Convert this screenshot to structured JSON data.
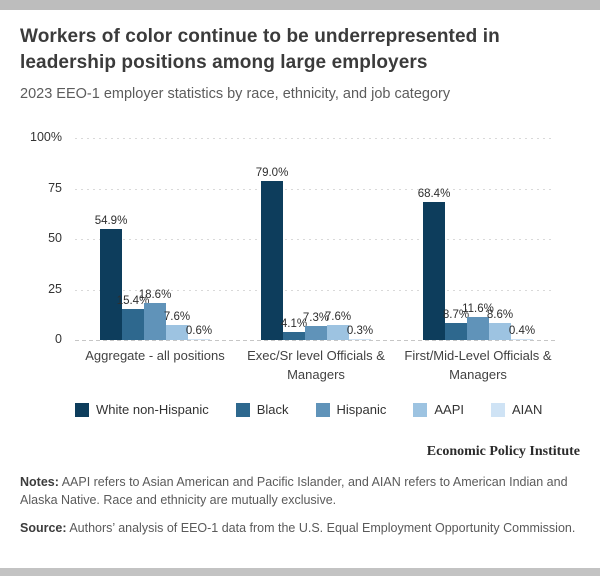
{
  "page": {
    "background": "#ffffff",
    "chrome_bar_color": "#bdbdbd"
  },
  "header": {
    "title": "Workers of color continue to be underrepresented in\nleadership positions among large employers",
    "subtitle": "2023 EEO-1 employer statistics by race, ethnicity, and job category"
  },
  "chart_data": {
    "type": "bar",
    "categories": [
      "Aggregate - all positions",
      "Exec/Sr level Officials & Managers",
      "First/Mid-Level Officials & Managers"
    ],
    "series": [
      {
        "name": "White non-Hispanic",
        "color": "#0d3d5c",
        "values": [
          54.9,
          79.0,
          68.4
        ]
      },
      {
        "name": "Black",
        "color": "#2e688e",
        "values": [
          15.4,
          4.1,
          8.7
        ]
      },
      {
        "name": "Hispanic",
        "color": "#6093b9",
        "values": [
          18.6,
          7.3,
          11.6
        ]
      },
      {
        "name": "AAPI",
        "color": "#9dc3e1",
        "values": [
          7.6,
          7.6,
          8.6
        ]
      },
      {
        "name": "AIAN",
        "color": "#cfe3f5",
        "values": [
          0.6,
          0.3,
          0.4
        ]
      }
    ],
    "value_label_format": "one_decimal_percent",
    "y_ticks": [
      {
        "label": "100%",
        "value": 100
      },
      {
        "label": "75",
        "value": 75
      },
      {
        "label": "50",
        "value": 50
      },
      {
        "label": "25",
        "value": 25
      },
      {
        "label": "0",
        "value": 0
      }
    ],
    "ylim": [
      0,
      100
    ],
    "grid": "horizontal-dotted",
    "legend_position": "bottom",
    "title": "Workers of color continue to be underrepresented in leadership positions among large employers",
    "subtitle": "2023 EEO-1 employer statistics by race, ethnicity, and job category",
    "xlabel": "",
    "ylabel": ""
  },
  "footer": {
    "brand": "Economic Policy Institute",
    "notes_label": "Notes:",
    "notes_text": " AAPI refers to Asian American and Pacific Islander, and AIAN refers to American Indian and Alaska Native. Race and ethnicity are mutually exclusive.",
    "source_label": "Source:",
    "source_text": " Authors’ analysis of EEO-1 data from the U.S. Equal Employment Opportunity Commission."
  }
}
